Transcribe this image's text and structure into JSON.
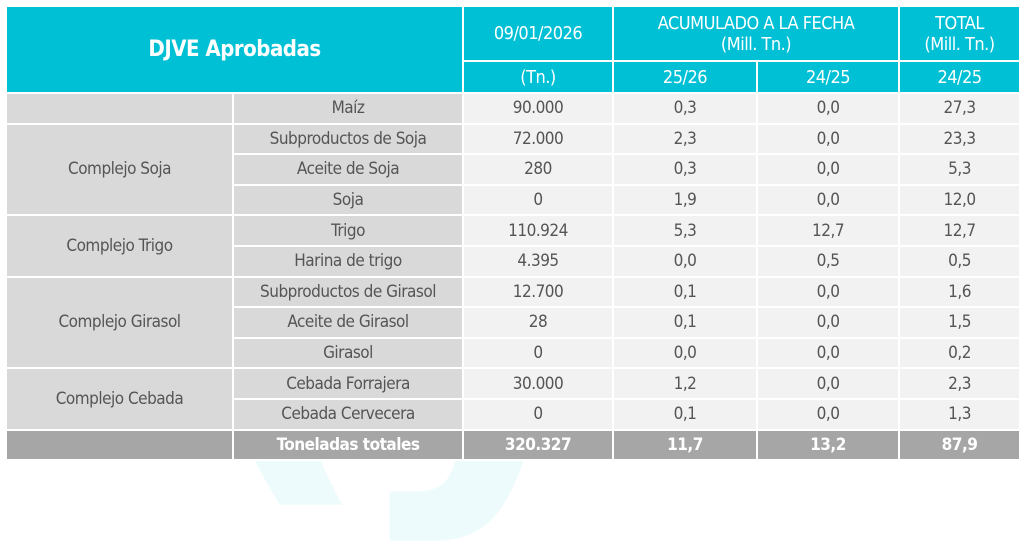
{
  "header": {
    "title": "DJVE Aprobadas",
    "date": "09/01/2026",
    "date_unit": "(Tn.)",
    "acum": "ACUMULADO A LA FECHA",
    "acum_unit": "(Mill. Tn.)",
    "total": "TOTAL",
    "total_unit": "(Mill. Tn.)",
    "c1": "25/26",
    "c2": "24/25",
    "c3": "24/25"
  },
  "groups": [
    "Complejo Soja",
    "Complejo Trigo",
    "Complejo Girasol",
    "Complejo Cebada"
  ],
  "rows": [
    {
      "product": "Maíz",
      "tn": "90.000",
      "a": "0,3",
      "b": "0,0",
      "t": "27,3"
    },
    {
      "product": "Subproductos de Soja",
      "tn": "72.000",
      "a": "2,3",
      "b": "0,0",
      "t": "23,3"
    },
    {
      "product": "Aceite de Soja",
      "tn": "280",
      "a": "0,3",
      "b": "0,0",
      "t": "5,3"
    },
    {
      "product": "Soja",
      "tn": "0",
      "a": "1,9",
      "b": "0,0",
      "t": "12,0"
    },
    {
      "product": "Trigo",
      "tn": "110.924",
      "a": "5,3",
      "b": "12,7",
      "t": "12,7"
    },
    {
      "product": "Harina de trigo",
      "tn": "4.395",
      "a": "0,0",
      "b": "0,5",
      "t": "0,5"
    },
    {
      "product": "Subproductos de Girasol",
      "tn": "12.700",
      "a": "0,1",
      "b": "0,0",
      "t": "1,6"
    },
    {
      "product": "Aceite de Girasol",
      "tn": "28",
      "a": "0,1",
      "b": "0,0",
      "t": "1,5"
    },
    {
      "product": "Girasol",
      "tn": "0",
      "a": "0,0",
      "b": "0,0",
      "t": "0,2"
    },
    {
      "product": "Cebada Forrajera",
      "tn": "30.000",
      "a": "1,2",
      "b": "0,0",
      "t": "2,3"
    },
    {
      "product": "Cebada Cervecera",
      "tn": "0",
      "a": "0,1",
      "b": "0,0",
      "t": "1,3"
    }
  ],
  "total": {
    "label": "Toneladas totales",
    "tn": "320.327",
    "a": "11,7",
    "b": "13,2",
    "t": "87,9"
  }
}
